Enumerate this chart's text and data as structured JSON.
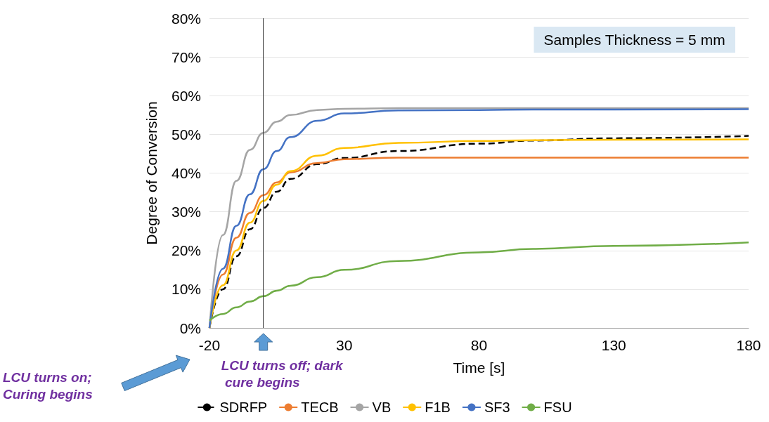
{
  "chart_data": {
    "type": "line",
    "xlabel": "Time [s]",
    "ylabel": "Degree of Conversion",
    "x": [
      -20,
      -15,
      -10,
      -5,
      0,
      5,
      10,
      20,
      30,
      50,
      80,
      100,
      130,
      180
    ],
    "series": [
      {
        "name": "SDRFP",
        "color": "#000000",
        "line_style": "dashed",
        "values": [
          0,
          10,
          18.5,
          25.5,
          31,
          35.2,
          38.5,
          42.3,
          43.9,
          45.7,
          47.6,
          48.4,
          49,
          49.6
        ]
      },
      {
        "name": "TECB",
        "color": "#ed7d31",
        "values": [
          0,
          13.8,
          23.3,
          29.7,
          34.3,
          37.6,
          40.2,
          42.6,
          43.6,
          44,
          44,
          44,
          44,
          44
        ]
      },
      {
        "name": "VB",
        "color": "#a5a5a5",
        "values": [
          0,
          24,
          38,
          46,
          50.4,
          53.3,
          55,
          56.3,
          56.6,
          56.8,
          56.8,
          56.8,
          56.8,
          56.8
        ]
      },
      {
        "name": "F1B",
        "color": "#ffc000",
        "values": [
          0,
          11,
          20,
          27.2,
          32.8,
          37,
          40.5,
          44.5,
          46.5,
          47.8,
          48.3,
          48.5,
          48.6,
          48.7
        ]
      },
      {
        "name": "SF3",
        "color": "#4472c4",
        "values": [
          0,
          15.3,
          26.4,
          34.5,
          41,
          45.7,
          49.3,
          53.5,
          55.4,
          56.2,
          56.3,
          56.4,
          56.4,
          56.5
        ]
      },
      {
        "name": "FSU",
        "color": "#70ad47",
        "values": [
          1.9,
          3.6,
          5.3,
          6.8,
          8.2,
          9.6,
          10.9,
          13.1,
          15,
          17.3,
          19.5,
          20.4,
          21.2,
          22.1
        ]
      }
    ],
    "xlim": [
      -20,
      180
    ],
    "xticks": [
      -20,
      30,
      80,
      130,
      180
    ],
    "ylim": [
      0,
      80
    ],
    "yticks": [
      {
        "value": 0,
        "label": "0%"
      },
      {
        "value": 10,
        "label": "10%"
      },
      {
        "value": 20,
        "label": "20%"
      },
      {
        "value": 30,
        "label": "30%"
      },
      {
        "value": 40,
        "label": "40%"
      },
      {
        "value": 50,
        "label": "50%"
      },
      {
        "value": 60,
        "label": "60%"
      },
      {
        "value": 70,
        "label": "70%"
      },
      {
        "value": 80,
        "label": "80%"
      }
    ],
    "grid": "y",
    "legend": "bottom",
    "marker": "none",
    "line_style": "solid",
    "ref_lines": [
      {
        "axis": "x",
        "value": 0,
        "color": "#404040"
      }
    ],
    "annotations": [
      "Samples Thickness = 5 mm",
      "LCU turns on; Curing begins",
      "LCU turns off; dark cure begins"
    ]
  }
}
